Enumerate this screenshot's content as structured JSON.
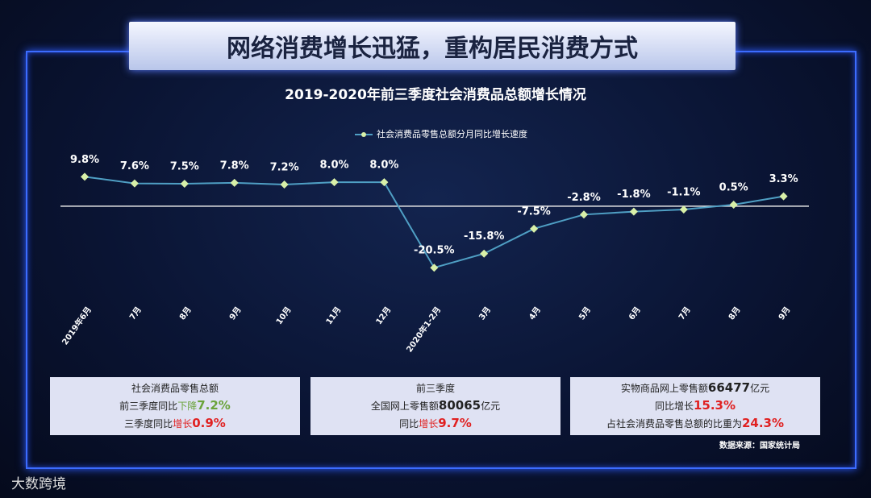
{
  "header": {
    "title": "网络消费增长迅猛，重构居民消费方式"
  },
  "chart_data": {
    "type": "line",
    "title": "2019-2020年前三季度社会消费品总额增长情况",
    "categories": [
      "2019年6月",
      "7月",
      "8月",
      "9月",
      "10月",
      "11月",
      "12月",
      "2020年1-2月",
      "3月",
      "4月",
      "5月",
      "6月",
      "7月",
      "8月",
      "9月"
    ],
    "series": [
      {
        "name": "社会消费品零售总额分月同比增长速度",
        "color": "#4f9fc4",
        "marker_color": "#d8f0a8",
        "values": [
          9.8,
          7.6,
          7.5,
          7.8,
          7.2,
          8.0,
          8.0,
          -20.5,
          -15.8,
          -7.5,
          -2.8,
          -1.8,
          -1.1,
          0.5,
          3.3
        ],
        "value_labels": [
          "9.8%",
          "7.6%",
          "7.5%",
          "7.8%",
          "7.2%",
          "8.0%",
          "8.0%",
          "-20.5%",
          "-15.8%",
          "-7.5%",
          "-2.8%",
          "-1.8%",
          "-1.1%",
          "0.5%",
          "3.3%"
        ]
      }
    ],
    "ylim": [
      -25,
      15
    ],
    "legend": "top"
  },
  "panels": [
    {
      "lines": [
        [
          {
            "text": "社会消费品零售总额"
          }
        ],
        [
          {
            "text": "前三季度同比"
          },
          {
            "text": "下降",
            "color": "#6aa33a"
          },
          {
            "text": "7.2%",
            "color": "#6aa33a",
            "big": true
          }
        ],
        [
          {
            "text": "三季度同比"
          },
          {
            "text": "增长",
            "color": "#e02020"
          },
          {
            "text": "0.9%",
            "color": "#e02020",
            "big": true
          }
        ]
      ]
    },
    {
      "lines": [
        [
          {
            "text": "前三季度"
          }
        ],
        [
          {
            "text": "全国网上零售额"
          },
          {
            "text": "80065",
            "big": true
          },
          {
            "text": "亿元"
          }
        ],
        [
          {
            "text": "同比"
          },
          {
            "text": "增长",
            "color": "#e02020"
          },
          {
            "text": "9.7%",
            "color": "#e02020",
            "big": true
          }
        ]
      ]
    },
    {
      "lines": [
        [
          {
            "text": "实物商品网上零售额"
          },
          {
            "text": "66477",
            "big": true
          },
          {
            "text": "亿元"
          }
        ],
        [
          {
            "text": "同比增长"
          },
          {
            "text": "15.3%",
            "color": "#e02020",
            "big": true
          }
        ],
        [
          {
            "text": "占社会消费品零售总额的比重为"
          },
          {
            "text": "24.3%",
            "color": "#e02020",
            "big": true
          }
        ]
      ]
    }
  ],
  "source": "数据来源：国家统计局",
  "watermark": "大数跨境"
}
